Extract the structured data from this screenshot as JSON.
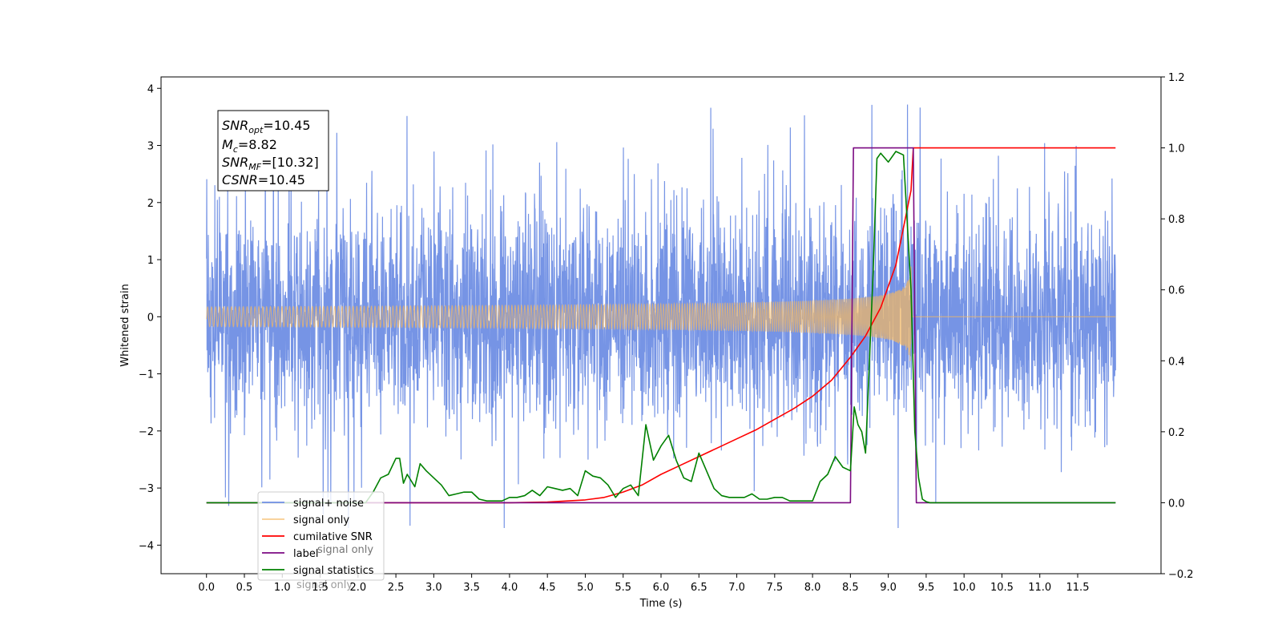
{
  "chart_data": {
    "type": "line",
    "xlabel": "Time (s)",
    "ylabel": "Whitened strain",
    "xlim": [
      -0.6,
      12.6
    ],
    "ylim": [
      -4.5,
      4.2
    ],
    "y2lim": [
      -0.2,
      1.2
    ],
    "x_ticks": [
      0.0,
      0.5,
      1.0,
      1.5,
      2.0,
      2.5,
      3.0,
      3.5,
      4.0,
      4.5,
      5.0,
      5.5,
      6.0,
      6.5,
      7.0,
      7.5,
      8.0,
      8.5,
      9.0,
      9.5,
      10.0,
      10.5,
      11.0,
      11.5
    ],
    "x_tick_labels": [
      "0.0",
      "0.5",
      "1.0",
      "1.5",
      "2.0",
      "2.5",
      "3.0",
      "3.5",
      "4.0",
      "4.5",
      "5.0",
      "5.5",
      "6.0",
      "6.5",
      "7.0",
      "7.5",
      "8.0",
      "8.5",
      "9.0",
      "9.5",
      "10.0",
      "10.5",
      "11.0",
      "11.5"
    ],
    "y_ticks": [
      -4,
      -3,
      -2,
      -1,
      0,
      1,
      2,
      3,
      4
    ],
    "y_tick_labels": [
      "−4",
      "−3",
      "−2",
      "−1",
      "0",
      "1",
      "2",
      "3",
      "4"
    ],
    "y2_ticks": [
      -0.2,
      0.0,
      0.2,
      0.4,
      0.6,
      0.8,
      1.0,
      1.2
    ],
    "y2_tick_labels": [
      "−0.2",
      "0.0",
      "0.2",
      "0.4",
      "0.6",
      "0.8",
      "1.0",
      "1.2"
    ],
    "grid": false,
    "legend_position": "lower-left",
    "noise": {
      "x_start": 0.0,
      "x_end": 12.0,
      "typical_amplitude": 1.2,
      "peak_amplitude": 3.8
    },
    "chirp": {
      "x_start": 0.0,
      "x_end": 9.3,
      "peak_amplitude": 0.95
    },
    "series": [
      {
        "name": "signal+ noise",
        "axis": "left",
        "color": "#6f8ee4"
      },
      {
        "name": "signal only",
        "axis": "left",
        "color": "#f5b860"
      },
      {
        "name": "cumilative SNR",
        "axis": "right",
        "color": "#ff0000",
        "x": [
          0.0,
          4.0,
          4.5,
          5.0,
          5.25,
          5.5,
          5.75,
          6.0,
          6.25,
          6.5,
          6.75,
          7.0,
          7.25,
          7.5,
          7.75,
          8.0,
          8.25,
          8.5,
          8.7,
          8.9,
          9.1,
          9.3,
          9.33,
          12.0
        ],
        "y": [
          0.0,
          0.0,
          0.002,
          0.008,
          0.015,
          0.03,
          0.05,
          0.08,
          0.105,
          0.13,
          0.155,
          0.18,
          0.205,
          0.235,
          0.265,
          0.3,
          0.345,
          0.41,
          0.47,
          0.55,
          0.67,
          0.88,
          1.0,
          1.0
        ]
      },
      {
        "name": "label",
        "axis": "right",
        "color": "#7b0a82",
        "x": [
          0.0,
          8.5,
          8.54,
          9.33,
          9.37,
          12.0
        ],
        "y": [
          0.0,
          0.0,
          1.0,
          1.0,
          0.0,
          0.0
        ]
      },
      {
        "name": "signal statistics",
        "axis": "right",
        "color": "#008000",
        "x": [
          0.0,
          2.1,
          2.2,
          2.3,
          2.4,
          2.5,
          2.55,
          2.6,
          2.65,
          2.75,
          2.82,
          2.9,
          3.0,
          3.1,
          3.2,
          3.3,
          3.4,
          3.5,
          3.6,
          3.7,
          3.8,
          3.9,
          4.0,
          4.1,
          4.2,
          4.3,
          4.4,
          4.5,
          4.6,
          4.7,
          4.8,
          4.9,
          5.0,
          5.1,
          5.2,
          5.3,
          5.4,
          5.5,
          5.6,
          5.7,
          5.8,
          5.9,
          6.0,
          6.1,
          6.2,
          6.3,
          6.4,
          6.5,
          6.6,
          6.7,
          6.8,
          6.9,
          7.0,
          7.1,
          7.2,
          7.3,
          7.4,
          7.5,
          7.6,
          7.7,
          7.8,
          7.9,
          8.0,
          8.1,
          8.2,
          8.3,
          8.4,
          8.5,
          8.55,
          8.6,
          8.65,
          8.7,
          8.8,
          8.85,
          8.9,
          9.0,
          9.1,
          9.2,
          9.3,
          9.35,
          9.4,
          9.45,
          9.5,
          9.55,
          9.6,
          9.7,
          12.0
        ],
        "y": [
          0.0,
          0.0,
          0.03,
          0.07,
          0.08,
          0.125,
          0.125,
          0.055,
          0.08,
          0.045,
          0.11,
          0.09,
          0.07,
          0.05,
          0.02,
          0.025,
          0.03,
          0.03,
          0.01,
          0.005,
          0.005,
          0.005,
          0.015,
          0.015,
          0.02,
          0.035,
          0.02,
          0.045,
          0.04,
          0.035,
          0.04,
          0.02,
          0.09,
          0.075,
          0.07,
          0.05,
          0.015,
          0.04,
          0.05,
          0.02,
          0.22,
          0.12,
          0.16,
          0.19,
          0.12,
          0.07,
          0.06,
          0.14,
          0.09,
          0.04,
          0.02,
          0.015,
          0.015,
          0.015,
          0.025,
          0.01,
          0.01,
          0.015,
          0.015,
          0.005,
          0.005,
          0.005,
          0.005,
          0.06,
          0.08,
          0.13,
          0.1,
          0.09,
          0.27,
          0.22,
          0.2,
          0.14,
          0.65,
          0.97,
          0.985,
          0.96,
          0.99,
          0.98,
          0.6,
          0.2,
          0.07,
          0.01,
          0.003,
          0.0,
          0.0,
          0.0,
          0.0
        ]
      }
    ],
    "annotation": {
      "lines": [
        {
          "base": "SNR",
          "sub": "opt",
          "value": "=10.45"
        },
        {
          "base": "M",
          "sub": "c",
          "value": "=8.82"
        },
        {
          "base": "SNR",
          "sub": "MF",
          "value": "=[10.32]"
        },
        {
          "base": "CSNR",
          "sub": "",
          "value": "=10.45"
        }
      ]
    },
    "legend": {
      "entries": [
        "signal+ noise",
        "signal only",
        "cumilative SNR",
        "label",
        "signal statistics"
      ],
      "ghost_text": [
        "signal only"
      ]
    }
  }
}
